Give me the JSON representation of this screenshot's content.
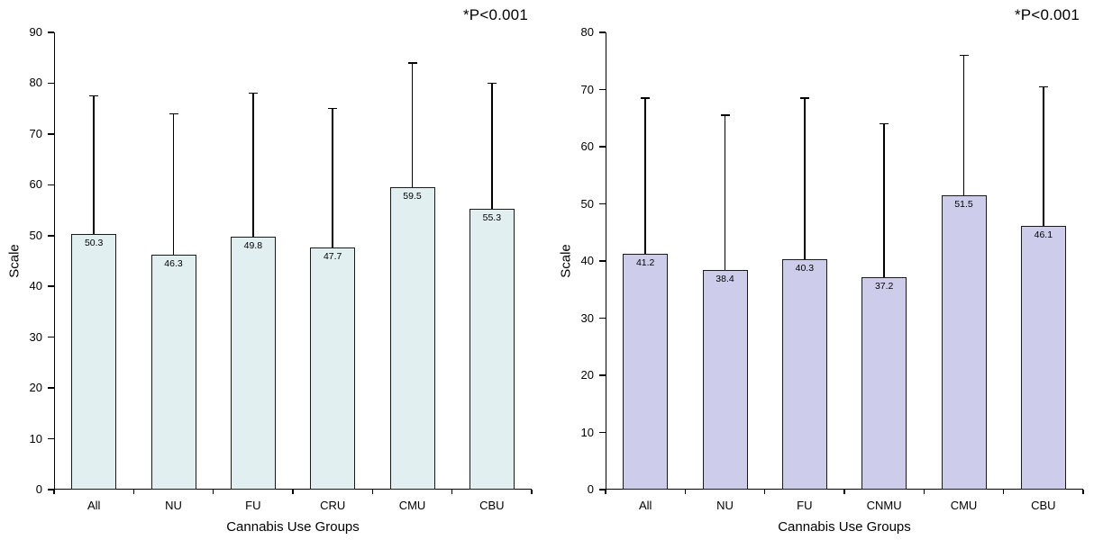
{
  "chart_data": [
    {
      "type": "bar",
      "title": "",
      "annotation": "*P<0.001",
      "ylabel": "Scale",
      "xlabel": "Cannabis Use Groups",
      "ylim": [
        0,
        90
      ],
      "ytick_step": 10,
      "grid": false,
      "legend": "none",
      "error_bars": "upper",
      "bar_fill": "#e2eff1",
      "bar_border": "#1a1a1a",
      "categories": [
        "All",
        "NU",
        "FU",
        "CRU",
        "CMU",
        "CBU"
      ],
      "values": [
        50.3,
        46.3,
        49.8,
        47.7,
        59.5,
        55.3
      ],
      "error_top": [
        77.5,
        74.0,
        78.0,
        75.0,
        84.0,
        80.0
      ]
    },
    {
      "type": "bar",
      "title": "",
      "annotation": "*P<0.001",
      "ylabel": "Scale",
      "xlabel": "Cannabis Use Groups",
      "ylim": [
        0,
        80
      ],
      "ytick_step": 10,
      "grid": false,
      "legend": "none",
      "error_bars": "upper",
      "bar_fill": "#cdcdeb",
      "bar_border": "#1a1a1a",
      "categories": [
        "All",
        "NU",
        "FU",
        "CNMU",
        "CMU",
        "CBU"
      ],
      "values": [
        41.2,
        38.4,
        40.3,
        37.2,
        51.5,
        46.1
      ],
      "error_top": [
        68.5,
        65.5,
        68.5,
        64.0,
        76.0,
        70.5
      ]
    }
  ]
}
